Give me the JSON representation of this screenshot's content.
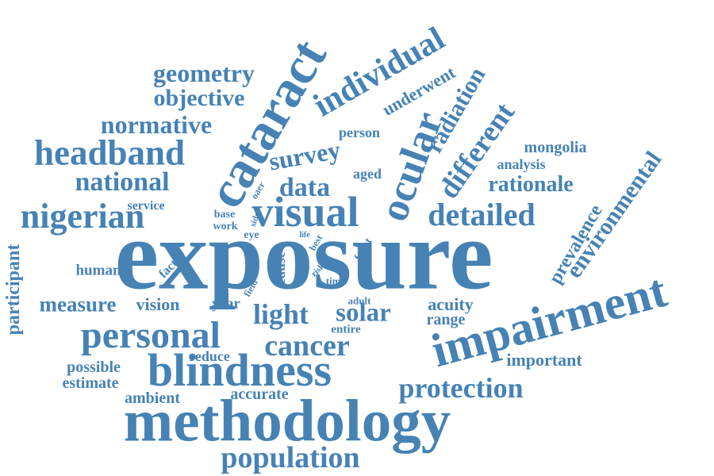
{
  "style": {
    "word_color": "#4682b4",
    "background": "#ffffff"
  },
  "words": {
    "exposure": "exposure",
    "methodology": "methodology",
    "impairment": "impairment",
    "cataract": "cataract",
    "blindness": "blindness",
    "visual": "visual",
    "individual": "individual",
    "ocular": "ocular",
    "personal": "personal",
    "detailed": "detailed",
    "headband": "headband",
    "nigerian": "nigerian",
    "population": "population",
    "protection": "protection",
    "cancer": "cancer",
    "light": "light",
    "solar": "solar",
    "different": "different",
    "environmental": "environmental",
    "survey": "survey",
    "data": "data",
    "national": "national",
    "normative": "normative",
    "geometry": "geometry",
    "objective": "objective",
    "radiation": "radiation",
    "rationale": "rationale",
    "prevalence": "prevalence",
    "measure": "measure",
    "participant": "participant",
    "underwent": "underwent",
    "mongolia": "mongolia",
    "important": "important",
    "acuity": "acuity",
    "range": "range",
    "ambient": "ambient",
    "accurate": "accurate",
    "estimate": "estimate",
    "possible": "possible",
    "vision": "vision",
    "reduce": "reduce",
    "human": "human",
    "year": "year",
    "analysis": "analysis",
    "aged": "aged",
    "person": "person",
    "service": "service",
    "entire": "entire",
    "cause": "cause",
    "factor": "factor",
    "oaer": "oaer",
    "base": "base",
    "work": "work",
    "eye": "eye",
    "side": "side",
    "life": "life",
    "best": "best",
    "front": "front",
    "risk": "risk",
    "field": "field",
    "time": "time",
    "adult": "adult"
  }
}
